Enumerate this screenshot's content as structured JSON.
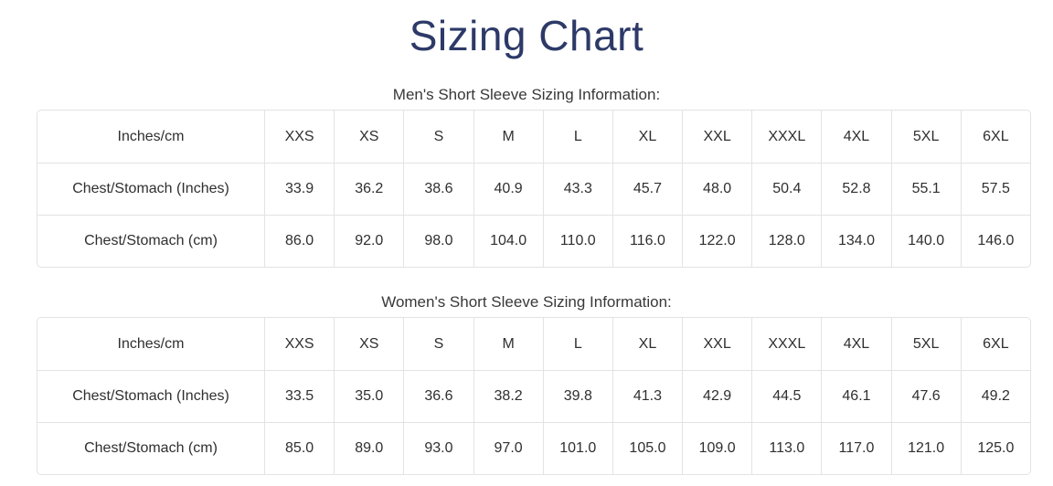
{
  "page": {
    "title": "Sizing Chart"
  },
  "colors": {
    "title_accent": "#2d3a68",
    "table_border": "#e3e3e3",
    "body_text": "#2f2f2f"
  },
  "tables": [
    {
      "caption": "Men's Short Sleeve Sizing Information:",
      "header_label": "Inches/cm",
      "sizes": [
        "XXS",
        "XS",
        "S",
        "M",
        "L",
        "XL",
        "XXL",
        "XXXL",
        "4XL",
        "5XL",
        "6XL"
      ],
      "rows": [
        {
          "label": "Chest/Stomach (Inches)",
          "values": [
            "33.9",
            "36.2",
            "38.6",
            "40.9",
            "43.3",
            "45.7",
            "48.0",
            "50.4",
            "52.8",
            "55.1",
            "57.5"
          ]
        },
        {
          "label": "Chest/Stomach (cm)",
          "values": [
            "86.0",
            "92.0",
            "98.0",
            "104.0",
            "110.0",
            "116.0",
            "122.0",
            "128.0",
            "134.0",
            "140.0",
            "146.0"
          ]
        }
      ]
    },
    {
      "caption": "Women's Short Sleeve Sizing Information:",
      "header_label": "Inches/cm",
      "sizes": [
        "XXS",
        "XS",
        "S",
        "M",
        "L",
        "XL",
        "XXL",
        "XXXL",
        "4XL",
        "5XL",
        "6XL"
      ],
      "rows": [
        {
          "label": "Chest/Stomach (Inches)",
          "values": [
            "33.5",
            "35.0",
            "36.6",
            "38.2",
            "39.8",
            "41.3",
            "42.9",
            "44.5",
            "46.1",
            "47.6",
            "49.2"
          ]
        },
        {
          "label": "Chest/Stomach (cm)",
          "values": [
            "85.0",
            "89.0",
            "93.0",
            "97.0",
            "101.0",
            "105.0",
            "109.0",
            "113.0",
            "117.0",
            "121.0",
            "125.0"
          ]
        }
      ]
    }
  ]
}
